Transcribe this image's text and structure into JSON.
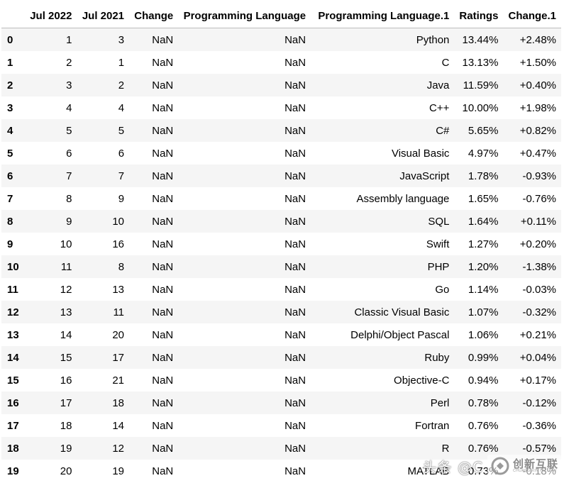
{
  "table": {
    "columns": [
      "",
      "Jul 2022",
      "Jul 2021",
      "Change",
      "Programming Language",
      "Programming Language.1",
      "Ratings",
      "Change.1"
    ],
    "rows": [
      {
        "index": "0",
        "jul_2022": "1",
        "jul_2021": "3",
        "change": "NaN",
        "programming_language": "NaN",
        "programming_language_1": "Python",
        "ratings": "13.44%",
        "change_1": "+2.48%"
      },
      {
        "index": "1",
        "jul_2022": "2",
        "jul_2021": "1",
        "change": "NaN",
        "programming_language": "NaN",
        "programming_language_1": "C",
        "ratings": "13.13%",
        "change_1": "+1.50%"
      },
      {
        "index": "2",
        "jul_2022": "3",
        "jul_2021": "2",
        "change": "NaN",
        "programming_language": "NaN",
        "programming_language_1": "Java",
        "ratings": "11.59%",
        "change_1": "+0.40%"
      },
      {
        "index": "3",
        "jul_2022": "4",
        "jul_2021": "4",
        "change": "NaN",
        "programming_language": "NaN",
        "programming_language_1": "C++",
        "ratings": "10.00%",
        "change_1": "+1.98%"
      },
      {
        "index": "4",
        "jul_2022": "5",
        "jul_2021": "5",
        "change": "NaN",
        "programming_language": "NaN",
        "programming_language_1": "C#",
        "ratings": "5.65%",
        "change_1": "+0.82%"
      },
      {
        "index": "5",
        "jul_2022": "6",
        "jul_2021": "6",
        "change": "NaN",
        "programming_language": "NaN",
        "programming_language_1": "Visual Basic",
        "ratings": "4.97%",
        "change_1": "+0.47%"
      },
      {
        "index": "6",
        "jul_2022": "7",
        "jul_2021": "7",
        "change": "NaN",
        "programming_language": "NaN",
        "programming_language_1": "JavaScript",
        "ratings": "1.78%",
        "change_1": "-0.93%"
      },
      {
        "index": "7",
        "jul_2022": "8",
        "jul_2021": "9",
        "change": "NaN",
        "programming_language": "NaN",
        "programming_language_1": "Assembly language",
        "ratings": "1.65%",
        "change_1": "-0.76%"
      },
      {
        "index": "8",
        "jul_2022": "9",
        "jul_2021": "10",
        "change": "NaN",
        "programming_language": "NaN",
        "programming_language_1": "SQL",
        "ratings": "1.64%",
        "change_1": "+0.11%"
      },
      {
        "index": "9",
        "jul_2022": "10",
        "jul_2021": "16",
        "change": "NaN",
        "programming_language": "NaN",
        "programming_language_1": "Swift",
        "ratings": "1.27%",
        "change_1": "+0.20%"
      },
      {
        "index": "10",
        "jul_2022": "11",
        "jul_2021": "8",
        "change": "NaN",
        "programming_language": "NaN",
        "programming_language_1": "PHP",
        "ratings": "1.20%",
        "change_1": "-1.38%"
      },
      {
        "index": "11",
        "jul_2022": "12",
        "jul_2021": "13",
        "change": "NaN",
        "programming_language": "NaN",
        "programming_language_1": "Go",
        "ratings": "1.14%",
        "change_1": "-0.03%"
      },
      {
        "index": "12",
        "jul_2022": "13",
        "jul_2021": "11",
        "change": "NaN",
        "programming_language": "NaN",
        "programming_language_1": "Classic Visual Basic",
        "ratings": "1.07%",
        "change_1": "-0.32%"
      },
      {
        "index": "13",
        "jul_2022": "14",
        "jul_2021": "20",
        "change": "NaN",
        "programming_language": "NaN",
        "programming_language_1": "Delphi/Object Pascal",
        "ratings": "1.06%",
        "change_1": "+0.21%"
      },
      {
        "index": "14",
        "jul_2022": "15",
        "jul_2021": "17",
        "change": "NaN",
        "programming_language": "NaN",
        "programming_language_1": "Ruby",
        "ratings": "0.99%",
        "change_1": "+0.04%"
      },
      {
        "index": "15",
        "jul_2022": "16",
        "jul_2021": "21",
        "change": "NaN",
        "programming_language": "NaN",
        "programming_language_1": "Objective-C",
        "ratings": "0.94%",
        "change_1": "+0.17%"
      },
      {
        "index": "16",
        "jul_2022": "17",
        "jul_2021": "18",
        "change": "NaN",
        "programming_language": "NaN",
        "programming_language_1": "Perl",
        "ratings": "0.78%",
        "change_1": "-0.12%"
      },
      {
        "index": "17",
        "jul_2022": "18",
        "jul_2021": "14",
        "change": "NaN",
        "programming_language": "NaN",
        "programming_language_1": "Fortran",
        "ratings": "0.76%",
        "change_1": "-0.36%"
      },
      {
        "index": "18",
        "jul_2022": "19",
        "jul_2021": "12",
        "change": "NaN",
        "programming_language": "NaN",
        "programming_language_1": "R",
        "ratings": "0.76%",
        "change_1": "-0.57%"
      },
      {
        "index": "19",
        "jul_2022": "20",
        "jul_2021": "19",
        "change": "NaN",
        "programming_language": "NaN",
        "programming_language_1": "MATLAB",
        "ratings": "0.73%",
        "change_1": "-0.18%"
      }
    ]
  },
  "watermark": {
    "text": "头条 @C",
    "logo_cn": "创新互联",
    "logo_en": "CHUANG XIN HU LIAN"
  },
  "colors": {
    "row_stripe": "#f5f5f5",
    "header_border": "#bdbdbd"
  }
}
